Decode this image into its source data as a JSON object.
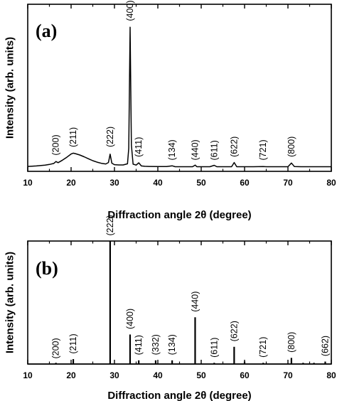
{
  "chart_data": [
    {
      "type": "line",
      "panel_label": "(a)",
      "xlabel": "Diffraction angle 2θ (degree)",
      "ylabel": "Intensity (arb. units)",
      "xlim": [
        10,
        80
      ],
      "xticks": [
        10,
        20,
        30,
        40,
        50,
        60,
        70,
        80
      ],
      "series_color": "#000000",
      "x": [
        10,
        12,
        14,
        15,
        16,
        16.5,
        17,
        18,
        19,
        20,
        20.5,
        21,
        22,
        23,
        24,
        25,
        26,
        27,
        28,
        28.6,
        29,
        29.4,
        30,
        31,
        32,
        33,
        33.3,
        33.6,
        33.9,
        34.3,
        35,
        35.6,
        36.2,
        37,
        38,
        40,
        42,
        43.3,
        44,
        46,
        48,
        48.6,
        49,
        50,
        52,
        53,
        53.6,
        55,
        57,
        57.6,
        58.2,
        60,
        62,
        64.3,
        65,
        68,
        70,
        70.8,
        71.5,
        73,
        75,
        77,
        80
      ],
      "y": [
        1.0,
        1.3,
        1.8,
        2.2,
        2.8,
        4.0,
        3.3,
        4.8,
        6.6,
        8.6,
        9.1,
        8.8,
        8.0,
        6.9,
        5.7,
        4.5,
        3.6,
        2.9,
        2.5,
        3.4,
        8.5,
        3.0,
        2.1,
        1.9,
        1.9,
        2.6,
        12.0,
        86.0,
        14.0,
        2.4,
        1.8,
        3.2,
        1.3,
        1.1,
        1.0,
        0.9,
        0.9,
        1.4,
        0.8,
        0.8,
        0.8,
        1.8,
        0.8,
        0.8,
        0.8,
        1.7,
        0.8,
        0.8,
        0.8,
        3.4,
        0.8,
        0.8,
        0.8,
        0.9,
        0.8,
        0.8,
        0.8,
        3.1,
        0.9,
        0.8,
        0.8,
        0.8,
        0.8
      ],
      "ylim": [
        -2,
        100
      ],
      "annotations": [
        {
          "text": "(200)",
          "x": 16.5,
          "y": 6
        },
        {
          "text": "(211)",
          "x": 20.5,
          "y": 11
        },
        {
          "text": "(222)",
          "x": 29.0,
          "y": 11
        },
        {
          "text": "(400)",
          "x": 33.6,
          "y": 88
        },
        {
          "text": "(411)",
          "x": 35.6,
          "y": 5
        },
        {
          "text": "(134)",
          "x": 43.3,
          "y": 3
        },
        {
          "text": "(440)",
          "x": 48.6,
          "y": 3
        },
        {
          "text": "(611)",
          "x": 53.0,
          "y": 3
        },
        {
          "text": "(622)",
          "x": 57.6,
          "y": 5
        },
        {
          "text": "(721)",
          "x": 64.3,
          "y": 3
        },
        {
          "text": "(800)",
          "x": 70.8,
          "y": 5
        }
      ]
    },
    {
      "type": "bar",
      "panel_label": "(b)",
      "xlabel": "Diffraction angle 2θ (degree)",
      "ylabel": "Intensity (arb. units)",
      "xlim": [
        10,
        80
      ],
      "xticks": [
        10,
        20,
        30,
        40,
        50,
        60,
        70,
        80
      ],
      "ylim": [
        0,
        100
      ],
      "baseline": 0,
      "series_color": "#000000",
      "x": [
        16.5,
        20.5,
        29.0,
        33.6,
        35.6,
        39.5,
        43.3,
        48.6,
        53.0,
        57.6,
        60.0,
        64.3,
        70.8,
        73.5,
        76.0,
        78.6
      ],
      "values": [
        1,
        4,
        100,
        24,
        3,
        3,
        3,
        38,
        1,
        14,
        2,
        1,
        5,
        1,
        1,
        2
      ],
      "annotations": [
        {
          "text": "(200)",
          "x": 16.5,
          "y": 2
        },
        {
          "text": "(211)",
          "x": 20.5,
          "y": 6
        },
        {
          "text": "(222)",
          "x": 29.0,
          "y": 102
        },
        {
          "text": "(400)",
          "x": 33.6,
          "y": 26
        },
        {
          "text": "(411)",
          "x": 35.6,
          "y": 5
        },
        {
          "text": "(332)",
          "x": 39.5,
          "y": 5
        },
        {
          "text": "(134)",
          "x": 43.3,
          "y": 5
        },
        {
          "text": "(440)",
          "x": 48.6,
          "y": 40
        },
        {
          "text": "(611)",
          "x": 53.0,
          "y": 3
        },
        {
          "text": "(622)",
          "x": 57.6,
          "y": 16
        },
        {
          "text": "(721)",
          "x": 64.3,
          "y": 3
        },
        {
          "text": "(800)",
          "x": 70.8,
          "y": 7
        },
        {
          "text": "(662)",
          "x": 78.6,
          "y": 4
        }
      ]
    }
  ]
}
